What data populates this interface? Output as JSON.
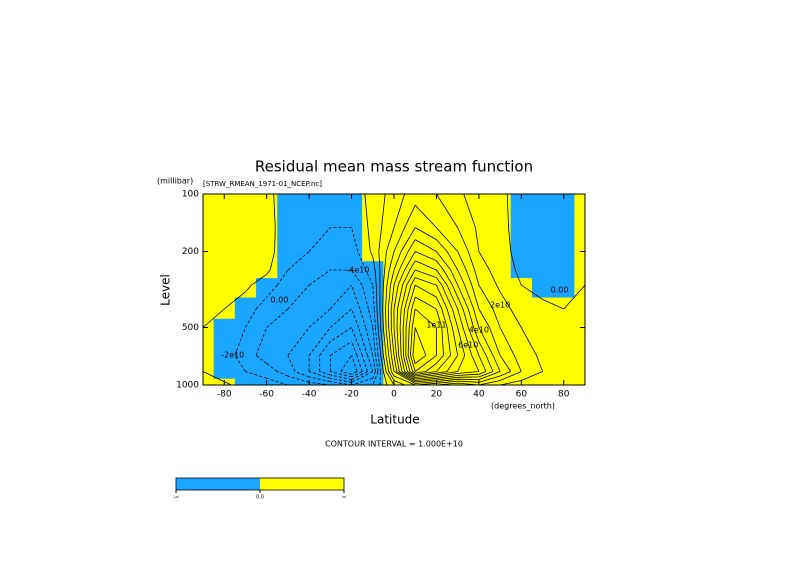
{
  "chart_data": {
    "type": "contour",
    "title": "Residual mean mass stream function",
    "dataset": "[STRW_RMEAN_1971-01_NCEP.nc]",
    "y_unit": "(millibar)",
    "y_label": "Level",
    "x_label": "Latitude",
    "x_unit": "(degrees_north)",
    "footnote": "CONTOUR INTERVAL = 1.000E+10",
    "xlim": [
      -90,
      90
    ],
    "xticks": [
      -80,
      -60,
      -40,
      -20,
      0,
      20,
      40,
      60,
      80
    ],
    "ylim": [
      1000,
      100
    ],
    "yticks": [
      100,
      200,
      500,
      1000
    ],
    "log_y": true,
    "fill_colors": [
      "#1aa6ff",
      "#ffff00"
    ],
    "line_color": "#000000",
    "x": [
      -90,
      -80,
      -70,
      -60,
      -50,
      -40,
      -30,
      -20,
      -10,
      0,
      10,
      20,
      30,
      40,
      50,
      60,
      70,
      80,
      90
    ],
    "y": [
      1000,
      850,
      700,
      500,
      400,
      300,
      250,
      200,
      150,
      100
    ],
    "z": [
      [
        0,
        1000000000.0,
        -2000000000.0,
        -5000000000.0,
        -10000000000.0,
        -15000000000.0,
        -20000000000.0,
        -30000000000.0,
        -20000000000.0,
        10000000000.0,
        30000000000.0,
        20000000000.0,
        10000000000.0,
        20000000000.0,
        10000000000.0,
        5000000000.0,
        3000000000.0,
        1000000000.0,
        0
      ],
      [
        0,
        -3000000000.0,
        -10000000000.0,
        -15000000000.0,
        -25000000000.0,
        -40000000000.0,
        -60000000000.0,
        -80000000000.0,
        -40000000000.0,
        40000000000.0,
        120000000000.0,
        100000000000.0,
        80000000000.0,
        70000000000.0,
        40000000000.0,
        20000000000.0,
        10000000000.0,
        3000000000.0,
        0
      ],
      [
        0,
        -5000000000.0,
        -15000000000.0,
        -25000000000.0,
        -30000000000.0,
        -40000000000.0,
        -60000000000.0,
        -70000000000.0,
        -30000000000.0,
        50000000000.0,
        140000000000.0,
        120000000000.0,
        90000000000.0,
        60000000000.0,
        30000000000.0,
        15000000000.0,
        8000000000.0,
        3000000000.0,
        0
      ],
      [
        0,
        -3000000000.0,
        -10000000000.0,
        -20000000000.0,
        -25000000000.0,
        -30000000000.0,
        -40000000000.0,
        -50000000000.0,
        -20000000000.0,
        60000000000.0,
        130000000000.0,
        120000000000.0,
        80000000000.0,
        40000000000.0,
        20000000000.0,
        10000000000.0,
        5000000000.0,
        2000000000.0,
        0
      ],
      [
        0,
        0,
        -5000000000.0,
        -15000000000.0,
        -20000000000.0,
        -25000000000.0,
        -30000000000.0,
        -40000000000.0,
        -15000000000.0,
        60000000000.0,
        120000000000.0,
        110000000000.0,
        70000000000.0,
        30000000000.0,
        15000000000.0,
        5000000000.0,
        2000000000.0,
        0,
        0
      ],
      [
        0,
        3000000000.0,
        2000000000.0,
        -5000000000.0,
        -15000000000.0,
        -20000000000.0,
        -25000000000.0,
        -30000000000.0,
        -10000000000.0,
        50000000000.0,
        100000000000.0,
        90000000000.0,
        50000000000.0,
        20000000000.0,
        8000000000.0,
        0,
        -3000000000.0,
        -3000000000.0,
        0
      ],
      [
        0,
        5000000000.0,
        5000000000.0,
        2000000000.0,
        -10000000000.0,
        -15000000000.0,
        -20000000000.0,
        -20000000000.0,
        -5000000000.0,
        40000000000.0,
        80000000000.0,
        70000000000.0,
        40000000000.0,
        15000000000.0,
        5000000000.0,
        -2000000000.0,
        -5000000000.0,
        -3000000000.0,
        0
      ],
      [
        0,
        4000000000.0,
        5000000000.0,
        3000000000.0,
        -5000000000.0,
        -10000000000.0,
        -15000000000.0,
        -15000000000.0,
        2000000000.0,
        30000000000.0,
        60000000000.0,
        50000000000.0,
        30000000000.0,
        10000000000.0,
        3000000000.0,
        -3000000000.0,
        -5000000000.0,
        -3000000000.0,
        0
      ],
      [
        0,
        3000000000.0,
        4000000000.0,
        2000000000.0,
        -3000000000.0,
        -6000000000.0,
        -10000000000.0,
        -10000000000.0,
        3000000000.0,
        20000000000.0,
        40000000000.0,
        30000000000.0,
        20000000000.0,
        8000000000.0,
        2000000000.0,
        -3000000000.0,
        -4000000000.0,
        -2000000000.0,
        0
      ],
      [
        0,
        2000000000.0,
        3000000000.0,
        1000000000.0,
        -2000000000.0,
        -4000000000.0,
        -6000000000.0,
        -5000000000.0,
        3000000000.0,
        15000000000.0,
        25000000000.0,
        20000000000.0,
        12000000000.0,
        5000000000.0,
        1000000000.0,
        -2000000000.0,
        -3000000000.0,
        -1000000000.0,
        0
      ]
    ],
    "contour_levels": [
      -80000000000.0,
      -70000000000.0,
      -60000000000.0,
      -50000000000.0,
      -40000000000.0,
      -30000000000.0,
      -20000000000.0,
      -10000000000.0,
      0,
      10000000000.0,
      20000000000.0,
      30000000000.0,
      40000000000.0,
      50000000000.0,
      60000000000.0,
      70000000000.0,
      80000000000.0,
      90000000000.0,
      100000000000.0,
      110000000000.0,
      120000000000.0,
      130000000000.0,
      140000000000.0
    ],
    "contour_labels": [
      {
        "label": "0.00",
        "x": -54,
        "y": 359
      },
      {
        "label": "0.00",
        "x": 78,
        "y": 318
      },
      {
        "label": "-2e10",
        "x": -76,
        "y": 697
      },
      {
        "label": "-4e10",
        "x": -17,
        "y": 250
      },
      {
        "label": "2e10",
        "x": 50,
        "y": 381
      },
      {
        "label": "4e10",
        "x": 40,
        "y": 515
      },
      {
        "label": "6e10",
        "x": 35,
        "y": 617
      },
      {
        "label": "1e11",
        "x": 20,
        "y": 485
      }
    ],
    "colorbar_labels": [
      "-∞",
      "0.0",
      "∞"
    ]
  }
}
